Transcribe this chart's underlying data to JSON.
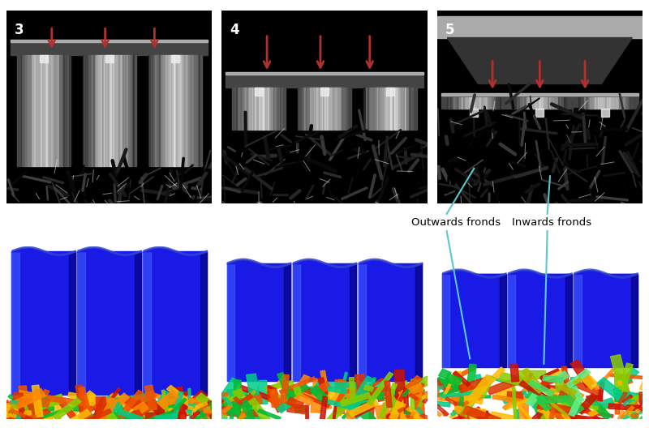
{
  "figsize": [
    8.0,
    5.33
  ],
  "dpi": 100,
  "background_color": "#ffffff",
  "panel_labels": [
    "3",
    "4",
    "5"
  ],
  "annotation_text_out": "Outwards fronds",
  "annotation_text_in": "Inwards fronds",
  "annotation_fontsize": 9.5,
  "arrow_color": "#b03030",
  "label_fontsize": 12,
  "cyan_color": "#5bc8d0"
}
